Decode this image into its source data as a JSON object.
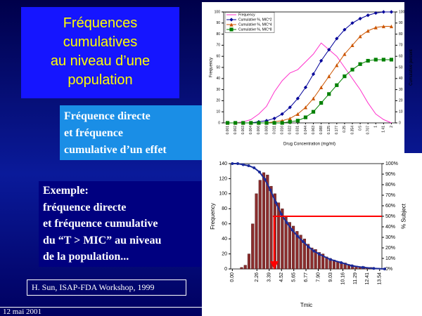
{
  "slide": {
    "title_lines": [
      "Fréquences",
      "cumulatives",
      "au niveau d’une",
      "population"
    ],
    "box_direct_lines": [
      "Fréquence directe",
      "et fréquence",
      "cumulative d’un effet"
    ],
    "box_example_lines": [
      "Exemple:",
      "fréquence directe",
      "et fréquence cumulative",
      "du “T > MIC” au niveau",
      "de la population..."
    ],
    "citation": "H. Sun, ISAP-FDA Workshop, 1999",
    "footer_date": "12 mai 2001"
  },
  "chart_data": [
    {
      "type": "line",
      "xlabel": "Drug Concentration (mg/ml)",
      "ylabel": "Frequency",
      "y2label": "Cumulative percent",
      "categories": [
        "0.001",
        "0.002",
        "0.003",
        "0.004",
        "0.006",
        "0.008",
        "0.011",
        "0.016",
        "0.022",
        "0.031",
        "0.044",
        "0.063",
        "0.088",
        "0.125",
        "0.177",
        "0.25",
        "0.354",
        "0.5",
        "0.707",
        "1",
        "1.41",
        "2"
      ],
      "ylim": [
        0,
        100
      ],
      "yticks": [
        0,
        10,
        20,
        30,
        40,
        50,
        60,
        70,
        80,
        90,
        100
      ],
      "y2lim": [
        0,
        100
      ],
      "y2ticks": [
        0,
        10,
        20,
        30,
        40,
        50,
        60,
        70,
        80,
        90,
        100
      ],
      "legend": "upper left",
      "series": [
        {
          "name": "Frequency",
          "color": "#ff33cc",
          "marker": "none",
          "axis": "y",
          "values": [
            0,
            0,
            1,
            3,
            8,
            15,
            28,
            38,
            45,
            48,
            55,
            62,
            72,
            66,
            60,
            50,
            40,
            30,
            18,
            8,
            3,
            0
          ]
        },
        {
          "name": "Cumulative %, MIC*2",
          "color": "#000099",
          "marker": "diamond",
          "axis": "y2",
          "values": [
            0,
            0,
            0,
            0,
            1,
            2,
            4,
            8,
            14,
            22,
            32,
            44,
            56,
            66,
            76,
            84,
            90,
            94,
            97,
            99,
            100,
            100
          ]
        },
        {
          "name": "Cumulative %, MIC*4",
          "color": "#cc5500",
          "marker": "triangle",
          "axis": "y2",
          "values": [
            0,
            0,
            0,
            0,
            0,
            0,
            1,
            2,
            4,
            8,
            14,
            22,
            32,
            42,
            52,
            62,
            70,
            78,
            83,
            86,
            87,
            87
          ]
        },
        {
          "name": "Cumulative %, MIC*8",
          "color": "#008000",
          "marker": "square",
          "axis": "y2",
          "values": [
            0,
            0,
            0,
            0,
            0,
            0,
            0,
            0,
            1,
            2,
            5,
            10,
            18,
            26,
            34,
            42,
            48,
            53,
            56,
            57,
            57,
            57
          ]
        }
      ]
    },
    {
      "type": "histogram",
      "xlabel": "Tmic",
      "ylabel": "Frequency",
      "y2label": "% Subject",
      "color": "#8b2d2d",
      "bins": [
        0.68,
        1.02,
        1.36,
        1.7,
        2.04,
        2.38,
        2.72,
        3.06,
        3.4,
        3.74,
        4.08,
        4.42,
        4.76,
        5.1,
        5.44,
        5.78,
        6.12,
        6.46,
        6.8,
        7.14,
        7.48,
        7.82,
        8.16,
        8.5,
        8.84,
        9.18,
        9.52,
        9.86,
        10.2,
        10.54,
        10.88,
        11.22,
        11.56,
        11.9,
        12.24,
        12.58,
        12.92,
        13.26,
        13.6
      ],
      "counts": [
        2,
        5,
        20,
        60,
        100,
        118,
        128,
        125,
        110,
        100,
        88,
        80,
        70,
        62,
        57,
        50,
        45,
        40,
        33,
        28,
        26,
        22,
        20,
        16,
        14,
        12,
        10,
        9,
        8,
        6,
        5,
        4,
        3,
        3,
        2,
        2,
        1,
        1
      ],
      "xlim": [
        -0.15,
        13.75
      ],
      "xticks": [
        {
          "value": 0,
          "label": "0.00"
        },
        {
          "value": 2.26,
          "label": "2.26"
        },
        {
          "value": 3.39,
          "label": "3.39"
        },
        {
          "value": 4.52,
          "label": "4.52"
        },
        {
          "value": 5.65,
          "label": "5.65"
        },
        {
          "value": 6.77,
          "label": "6.77"
        },
        {
          "value": 7.9,
          "label": "7.90"
        },
        {
          "value": 9.03,
          "label": "9.03"
        },
        {
          "value": 10.16,
          "label": "10.16"
        },
        {
          "value": 11.29,
          "label": "11.29"
        },
        {
          "value": 12.41,
          "label": "12.41"
        },
        {
          "value": 13.54,
          "label": "13.54"
        }
      ],
      "ylim": [
        0,
        140
      ],
      "yticks": [
        0,
        20,
        40,
        60,
        80,
        100,
        120,
        140
      ],
      "y2lim": [
        0,
        100
      ],
      "y2ticks": [
        {
          "value": 0,
          "label": "0%"
        },
        {
          "value": 10,
          "label": "10%"
        },
        {
          "value": 20,
          "label": "20%"
        },
        {
          "value": 30,
          "label": "30%"
        },
        {
          "value": 40,
          "label": "40%"
        },
        {
          "value": 50,
          "label": "50%"
        },
        {
          "value": 60,
          "label": "60%"
        },
        {
          "value": 70,
          "label": "70%"
        },
        {
          "value": 80,
          "label": "80%"
        },
        {
          "value": 90,
          "label": "90%"
        },
        {
          "value": 100,
          "label": "100%"
        }
      ],
      "overlay": {
        "type": "line",
        "color": "#1a2a9a",
        "axis": "y2",
        "x": [
          0,
          0.5,
          1,
          1.5,
          2,
          2.5,
          3,
          3.5,
          4,
          4.5,
          5,
          5.5,
          6,
          6.5,
          7,
          7.5,
          8,
          9,
          10,
          11,
          12,
          13,
          14
        ],
        "values": [
          100,
          100,
          99,
          98,
          96,
          92,
          85,
          75,
          63,
          52,
          44,
          37,
          31,
          26,
          21,
          17,
          14,
          9,
          6,
          3,
          1.5,
          0.5,
          0
        ]
      }
    }
  ]
}
